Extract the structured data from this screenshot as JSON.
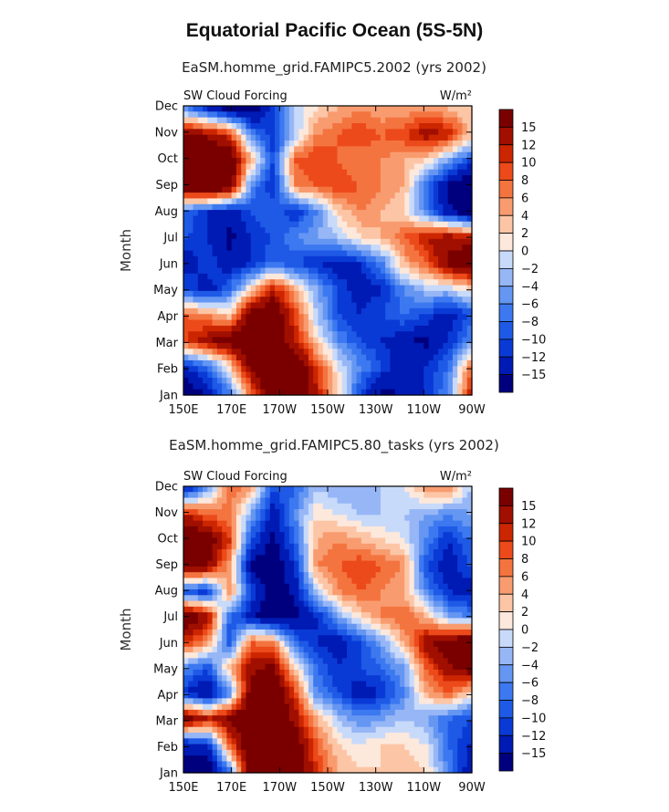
{
  "title": "Equatorial Pacific Ocean (5S-5N)",
  "chart_data": [
    {
      "type": "heatmap",
      "title": "EaSM.homme_grid.FAMIPC5.2002 (yrs 2002)",
      "left_label": "SW Cloud Forcing",
      "units": "W/m²",
      "ylabel": "Month",
      "x_ticks": [
        "150E",
        "170E",
        "170W",
        "150W",
        "130W",
        "110W",
        "90W"
      ],
      "y_ticks": [
        "Jan",
        "Feb",
        "Mar",
        "Apr",
        "May",
        "Jun",
        "Jul",
        "Aug",
        "Sep",
        "Oct",
        "Nov",
        "Dec"
      ],
      "colorbar_labels": [
        "15",
        "12",
        "10",
        "8",
        "6",
        "4",
        "2",
        "0",
        "-2",
        "-4",
        "-6",
        "-8",
        "-10",
        "-12",
        "-15"
      ],
      "values": [
        [
          -18,
          -14,
          -6,
          8,
          20,
          22,
          12,
          2,
          -10,
          -16,
          -14,
          -12,
          -6,
          10
        ],
        [
          -12,
          -8,
          2,
          16,
          22,
          20,
          10,
          0,
          -6,
          -10,
          -14,
          -12,
          -8,
          6
        ],
        [
          10,
          14,
          18,
          22,
          18,
          12,
          2,
          -6,
          -10,
          -12,
          -14,
          -16,
          -12,
          -6
        ],
        [
          8,
          6,
          2,
          18,
          20,
          10,
          -2,
          -10,
          -12,
          -10,
          -8,
          -10,
          -14,
          -10
        ],
        [
          -10,
          -14,
          -8,
          2,
          12,
          4,
          -4,
          -10,
          -14,
          -12,
          -6,
          -2,
          -2,
          2
        ],
        [
          -14,
          -10,
          -14,
          -12,
          -8,
          -10,
          -12,
          -14,
          -12,
          -6,
          4,
          8,
          16,
          20
        ],
        [
          -10,
          -12,
          -16,
          -12,
          -10,
          -6,
          -4,
          -2,
          2,
          4,
          8,
          12,
          14,
          12
        ],
        [
          -8,
          -12,
          -14,
          -10,
          -8,
          -12,
          -6,
          2,
          6,
          4,
          2,
          -6,
          -14,
          -18
        ],
        [
          20,
          22,
          18,
          -6,
          -12,
          6,
          8,
          10,
          8,
          6,
          4,
          -8,
          -16,
          -20
        ],
        [
          20,
          22,
          20,
          4,
          -10,
          8,
          10,
          8,
          6,
          6,
          4,
          2,
          -4,
          -10
        ],
        [
          16,
          14,
          10,
          -6,
          -12,
          -2,
          6,
          8,
          10,
          8,
          10,
          14,
          12,
          4
        ],
        [
          -6,
          -12,
          -16,
          -18,
          -10,
          -2,
          2,
          4,
          6,
          4,
          4,
          6,
          4,
          2
        ]
      ]
    },
    {
      "type": "heatmap",
      "title": "EaSM.homme_grid.FAMIPC5.80_tasks (yrs 2002)",
      "left_label": "SW Cloud Forcing",
      "units": "W/m²",
      "ylabel": "Month",
      "x_ticks": [
        "150E",
        "170E",
        "170W",
        "150W",
        "130W",
        "110W",
        "90W"
      ],
      "y_ticks": [
        "Jan",
        "Feb",
        "Mar",
        "Apr",
        "May",
        "Jun",
        "Jul",
        "Aug",
        "Sep",
        "Oct",
        "Nov",
        "Dec"
      ],
      "colorbar_labels": [
        "15",
        "12",
        "10",
        "8",
        "6",
        "4",
        "2",
        "0",
        "-2",
        "-4",
        "-6",
        "-8",
        "-10",
        "-12",
        "-15"
      ],
      "values": [
        [
          -16,
          -18,
          -6,
          20,
          22,
          20,
          10,
          4,
          2,
          2,
          4,
          2,
          -6,
          -14
        ],
        [
          -14,
          -12,
          8,
          20,
          22,
          18,
          8,
          2,
          0,
          2,
          2,
          0,
          -8,
          -12
        ],
        [
          18,
          12,
          16,
          22,
          20,
          14,
          4,
          -2,
          -6,
          -4,
          -2,
          -4,
          -8,
          -10
        ],
        [
          -12,
          -16,
          -6,
          18,
          20,
          10,
          -6,
          -10,
          -14,
          -12,
          -6,
          4,
          8,
          2
        ],
        [
          -6,
          -10,
          4,
          14,
          16,
          2,
          -8,
          -12,
          -10,
          -8,
          -4,
          8,
          14,
          18
        ],
        [
          10,
          6,
          -10,
          8,
          6,
          -8,
          -12,
          -14,
          -10,
          -4,
          4,
          14,
          18,
          20
        ],
        [
          20,
          14,
          -8,
          -14,
          -18,
          -16,
          -12,
          -4,
          2,
          6,
          8,
          4,
          -4,
          -6
        ],
        [
          -10,
          -12,
          6,
          -10,
          -18,
          -14,
          -2,
          6,
          8,
          6,
          4,
          -6,
          -12,
          -14
        ],
        [
          18,
          16,
          4,
          -16,
          -18,
          -12,
          6,
          8,
          10,
          8,
          6,
          -10,
          -14,
          -10
        ],
        [
          20,
          18,
          10,
          -10,
          -16,
          -8,
          4,
          6,
          4,
          2,
          0,
          -6,
          -12,
          -8
        ],
        [
          12,
          8,
          6,
          -4,
          -14,
          -6,
          2,
          0,
          -2,
          -2,
          -2,
          -4,
          -6,
          -4
        ],
        [
          -12,
          -4,
          8,
          4,
          -10,
          -8,
          -2,
          -4,
          -4,
          -2,
          0,
          4,
          6,
          -2
        ]
      ]
    }
  ]
}
